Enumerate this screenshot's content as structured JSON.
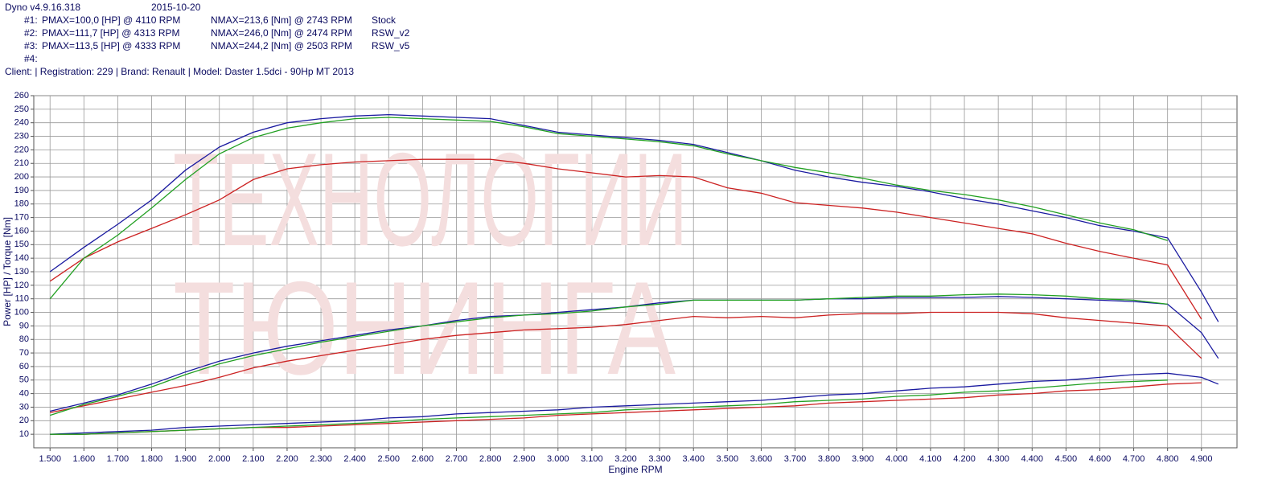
{
  "header": {
    "app": "Dyno v4.9.16.318",
    "date": "2015-10-20",
    "runs": [
      {
        "id": "#1:",
        "pmax": "PMAX=100,0 [HP] @ 4110 RPM",
        "nmax": "NMAX=213,6 [Nm] @ 2743 RPM",
        "name": "Stock"
      },
      {
        "id": "#2:",
        "pmax": "PMAX=111,7 [HP] @ 4313 RPM",
        "nmax": "NMAX=246,0 [Nm] @ 2474 RPM",
        "name": "RSW_v2"
      },
      {
        "id": "#3:",
        "pmax": "PMAX=113,5 [HP] @ 4333 RPM",
        "nmax": "NMAX=244,2 [Nm] @ 2503 RPM",
        "name": "RSW_v5"
      },
      {
        "id": "#4:"
      }
    ],
    "client": "Client:   | Registration: 229 | Brand: Renault | Model: Daster 1.5dci - 90Hp MT 2013"
  },
  "chart_data": {
    "type": "line",
    "watermark": [
      "ТЕХНОЛОГИИ",
      "ТЮНИНГА"
    ],
    "x_label": "Engine RPM",
    "y_label": "Power [HP] / Torque [Nm]",
    "x": [
      1500,
      1600,
      1700,
      1800,
      1900,
      2000,
      2100,
      2200,
      2300,
      2400,
      2500,
      2600,
      2700,
      2800,
      2900,
      3000,
      3100,
      3200,
      3300,
      3400,
      3500,
      3600,
      3700,
      3800,
      3900,
      4000,
      4100,
      4200,
      4300,
      4400,
      4500,
      4600,
      4700,
      4800,
      4900,
      4950
    ],
    "xlim": [
      1452,
      5005
    ],
    "ylim": [
      0,
      260
    ],
    "xticks": [
      {
        "value": 1500,
        "label": "1.500"
      },
      {
        "value": 1600,
        "label": "1.600"
      },
      {
        "value": 1700,
        "label": "1.700"
      },
      {
        "value": 1800,
        "label": "1.800"
      },
      {
        "value": 1900,
        "label": "1.900"
      },
      {
        "value": 2000,
        "label": "2.000"
      },
      {
        "value": 2100,
        "label": "2.100"
      },
      {
        "value": 2200,
        "label": "2.200"
      },
      {
        "value": 2300,
        "label": "2.300"
      },
      {
        "value": 2400,
        "label": "2.400"
      },
      {
        "value": 2500,
        "label": "2.500"
      },
      {
        "value": 2600,
        "label": "2.600"
      },
      {
        "value": 2700,
        "label": "2.700"
      },
      {
        "value": 2800,
        "label": "2.800"
      },
      {
        "value": 2900,
        "label": "2.900"
      },
      {
        "value": 3000,
        "label": "3.000"
      },
      {
        "value": 3100,
        "label": "3.100"
      },
      {
        "value": 3200,
        "label": "3.200"
      },
      {
        "value": 3300,
        "label": "3.300"
      },
      {
        "value": 3400,
        "label": "3.400"
      },
      {
        "value": 3500,
        "label": "3.500"
      },
      {
        "value": 3600,
        "label": "3.600"
      },
      {
        "value": 3700,
        "label": "3.700"
      },
      {
        "value": 3800,
        "label": "3.800"
      },
      {
        "value": 3900,
        "label": "3.900"
      },
      {
        "value": 4000,
        "label": "4.000"
      },
      {
        "value": 4100,
        "label": "4.100"
      },
      {
        "value": 4200,
        "label": "4.200"
      },
      {
        "value": 4300,
        "label": "4.300"
      },
      {
        "value": 4400,
        "label": "4.400"
      },
      {
        "value": 4500,
        "label": "4.500"
      },
      {
        "value": 4600,
        "label": "4.600"
      },
      {
        "value": 4700,
        "label": "4.700"
      },
      {
        "value": 4800,
        "label": "4.800"
      },
      {
        "value": 4900,
        "label": "4.900"
      }
    ],
    "yticks": [
      10,
      20,
      30,
      40,
      50,
      60,
      70,
      80,
      90,
      100,
      110,
      120,
      130,
      140,
      150,
      160,
      170,
      180,
      190,
      200,
      210,
      220,
      230,
      240,
      250,
      260
    ],
    "grid": true,
    "series": [
      {
        "color": "#cc2222",
        "values": [
          123,
          140,
          152,
          162,
          172,
          183,
          198,
          206,
          209,
          211,
          212,
          213,
          213,
          213,
          210,
          206,
          203,
          200,
          201,
          200,
          192,
          188,
          181,
          179,
          177,
          174,
          170,
          166,
          162,
          158,
          151,
          145,
          140,
          135,
          95,
          null
        ]
      },
      {
        "color": "#1a1aa0",
        "values": [
          130,
          148,
          165,
          183,
          205,
          222,
          233,
          240,
          243,
          245,
          246,
          245,
          244,
          243,
          238,
          233,
          231,
          229,
          227,
          224,
          218,
          212,
          205,
          200,
          196,
          193,
          189,
          184,
          180,
          175,
          170,
          164,
          160,
          155,
          115,
          93
        ]
      },
      {
        "color": "#22a022",
        "values": [
          110,
          140,
          157,
          177,
          198,
          217,
          229,
          236,
          240,
          243,
          244,
          243,
          242,
          241,
          237,
          232,
          230,
          228,
          226,
          223,
          217,
          212,
          207,
          203,
          199,
          194,
          190,
          187,
          183,
          178,
          172,
          166,
          161,
          153,
          null,
          null
        ]
      },
      {
        "color": "#cc2222",
        "values": [
          26,
          31,
          36,
          41,
          46,
          52,
          59,
          64,
          68,
          72,
          76,
          80,
          83,
          85,
          87,
          88,
          89,
          91,
          94,
          97,
          96,
          97,
          96,
          98,
          99,
          99,
          100,
          100,
          100,
          99,
          96,
          94,
          92,
          90,
          66,
          null
        ]
      },
      {
        "color": "#1a1aa0",
        "values": [
          27,
          33,
          39,
          47,
          56,
          64,
          70,
          75,
          79,
          83,
          87,
          90,
          94,
          97,
          98,
          100,
          102,
          104,
          107,
          109,
          109,
          109,
          109,
          110,
          110,
          111,
          111,
          111,
          111.7,
          111,
          110,
          109,
          108,
          106,
          85,
          66
        ]
      },
      {
        "color": "#22a022",
        "values": [
          24,
          32,
          38,
          45,
          54,
          62,
          68,
          73,
          78,
          82,
          86,
          90,
          93,
          96,
          98,
          99,
          101,
          104,
          106,
          109,
          109,
          109,
          109,
          110,
          111,
          112,
          112,
          113,
          113.5,
          113,
          112,
          110,
          109,
          106,
          null,
          null
        ]
      },
      {
        "color": "#cc2222",
        "values": [
          10,
          10,
          11,
          12,
          13,
          14,
          15,
          15,
          16,
          17,
          18,
          19,
          20,
          21,
          22,
          24,
          25,
          26,
          27,
          28,
          29,
          30,
          31,
          33,
          34,
          35,
          36,
          37,
          39,
          40,
          42,
          43,
          45,
          47,
          48,
          null
        ]
      },
      {
        "color": "#1a1aa0",
        "values": [
          10,
          11,
          12,
          13,
          15,
          16,
          17,
          18,
          19,
          20,
          22,
          23,
          25,
          26,
          27,
          28,
          30,
          31,
          32,
          33,
          34,
          35,
          37,
          39,
          40,
          42,
          44,
          45,
          47,
          49,
          50,
          52,
          54,
          55,
          52,
          47
        ]
      },
      {
        "color": "#22a022",
        "values": [
          10,
          10,
          11,
          12,
          13,
          14,
          15,
          16,
          17,
          18,
          19,
          21,
          22,
          23,
          24,
          25,
          26,
          28,
          29,
          30,
          31,
          32,
          34,
          35,
          36,
          38,
          39,
          41,
          42,
          44,
          46,
          48,
          49,
          50,
          null,
          null
        ]
      }
    ]
  }
}
